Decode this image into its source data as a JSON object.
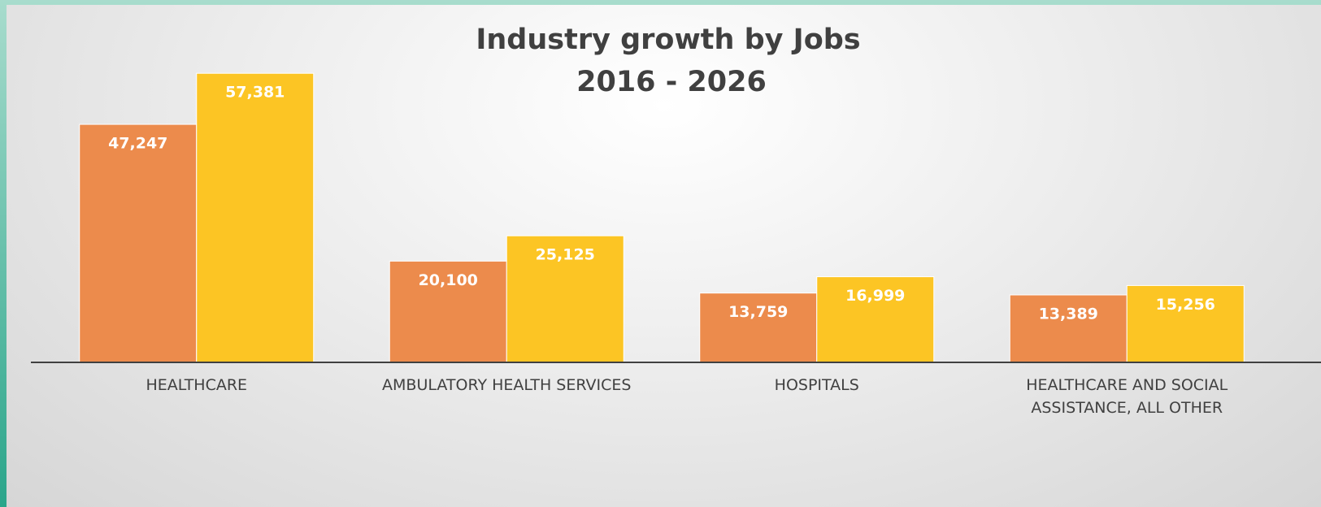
{
  "chart_data": {
    "type": "bar",
    "title": [
      "Industry growth by Jobs",
      "2016 - 2026"
    ],
    "categories": [
      "HEALTHCARE",
      "AMBULATORY HEALTH SERVICES",
      "HOSPITALS",
      "HEALTHCARE AND SOCIAL ASSISTANCE, ALL OTHER"
    ],
    "series": [
      {
        "color": "#ec8b4c",
        "values": [
          47247,
          20100,
          13759,
          13389
        ],
        "value_labels": [
          "47,247",
          "20,100",
          "13,759",
          "13,389"
        ]
      },
      {
        "color": "#fcc524",
        "values": [
          57381,
          25125,
          16999,
          15256
        ],
        "value_labels": [
          "57,381",
          "25,125",
          "16,999",
          "15,256"
        ]
      }
    ],
    "ylim": [
      0,
      70000
    ]
  }
}
